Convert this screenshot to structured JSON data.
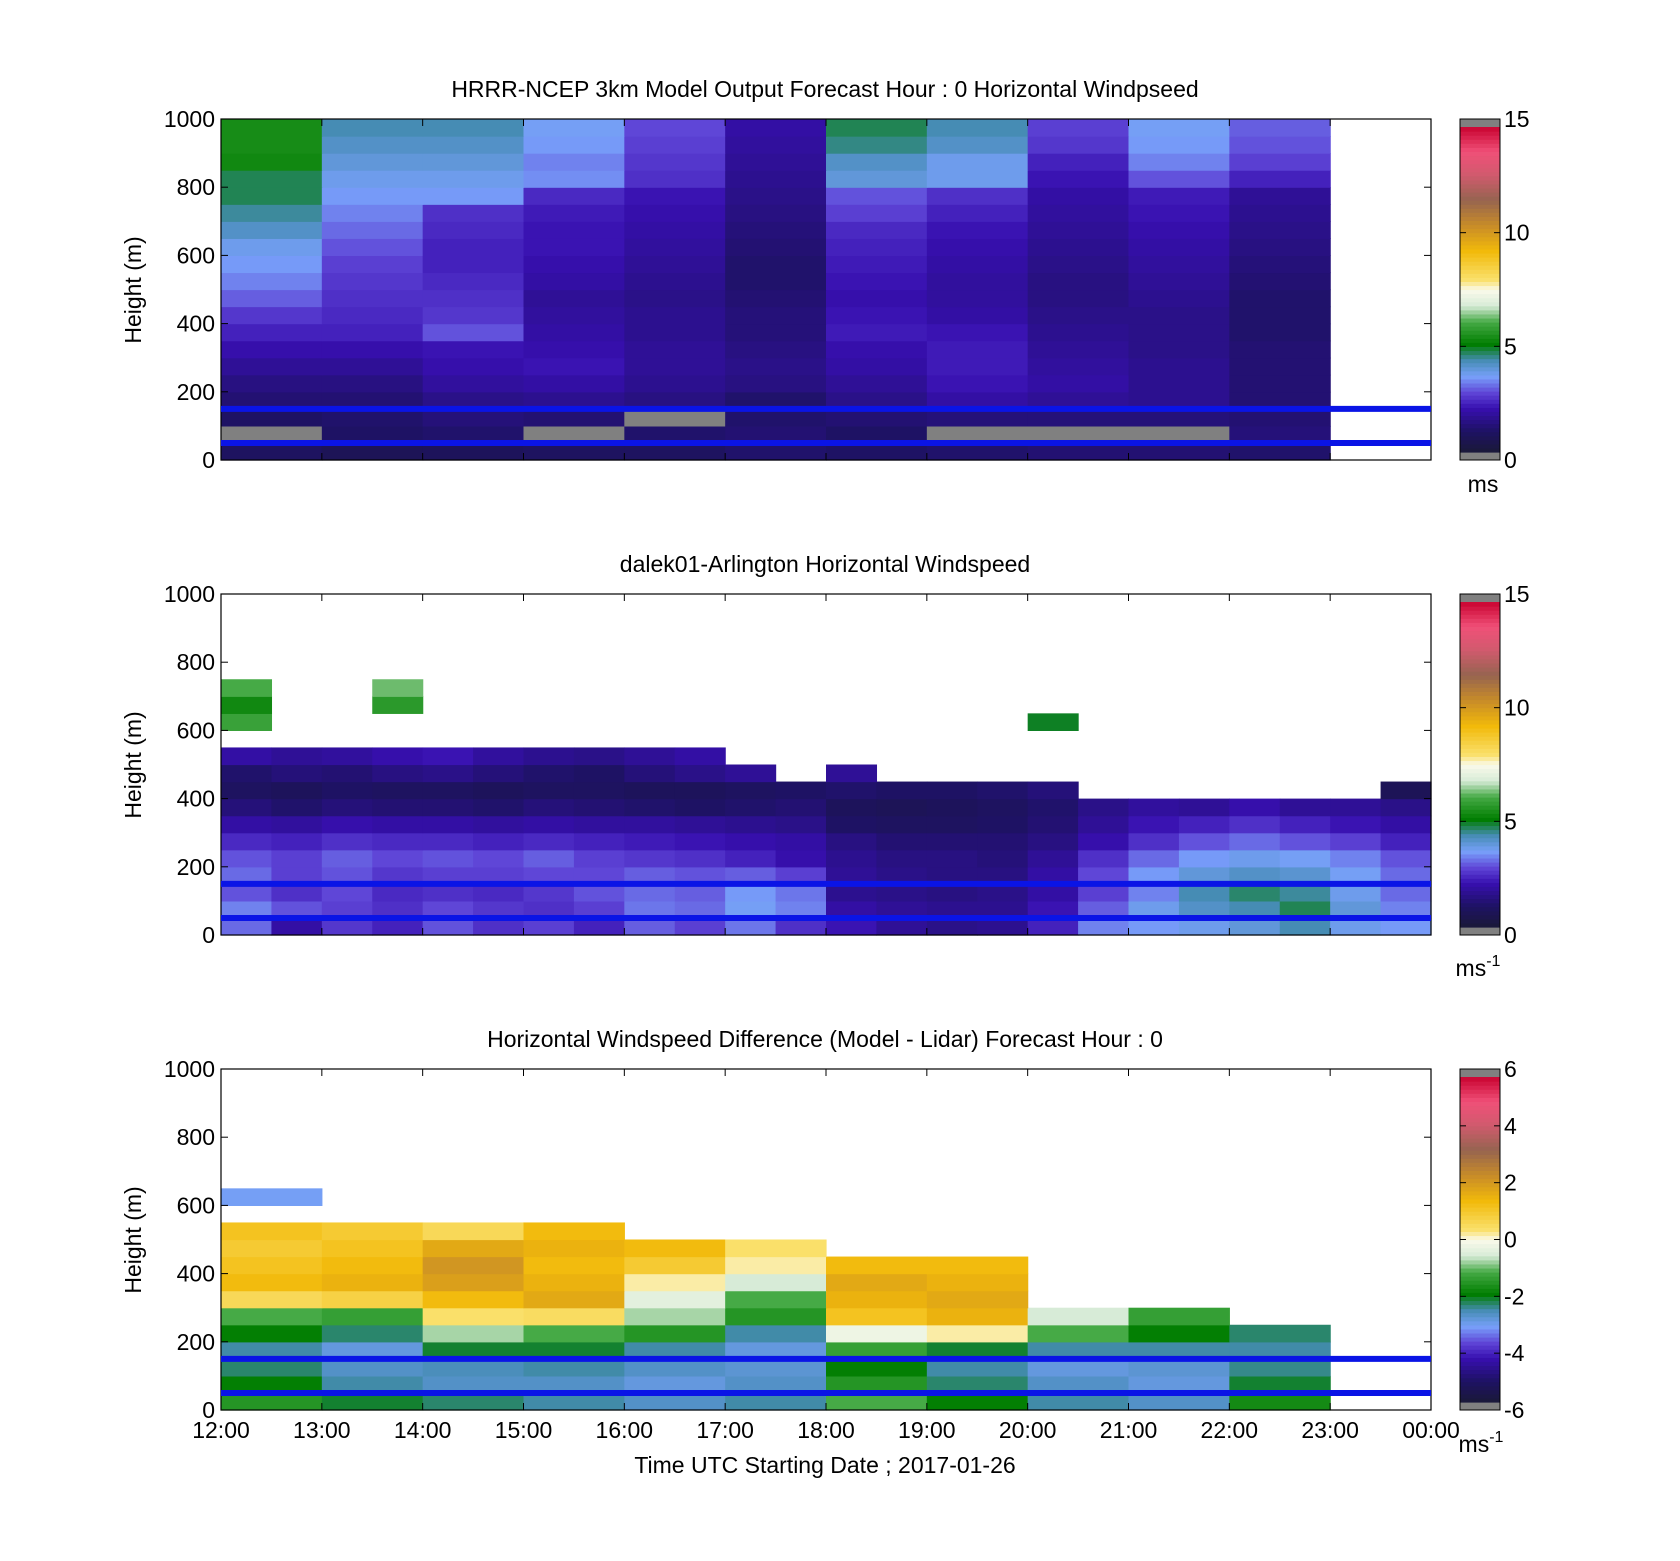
{
  "figure": {
    "xlabel": "Time UTC  Starting Date ; 2017-01-26"
  },
  "chart_data": [
    {
      "type": "heatmap",
      "title": "HRRR-NCEP 3km Model Output   Forecast Hour : 0 Horizontal Windpseed",
      "ylabel": "Height (m)",
      "xlim_hours": [
        12,
        24
      ],
      "ylim": [
        0,
        1000
      ],
      "yticks": [
        "0",
        "200",
        "400",
        "600",
        "800",
        "1000"
      ],
      "colorbar": {
        "min": 0,
        "max": 15,
        "ticks": [
          "0",
          "5",
          "10",
          "15"
        ],
        "unit_base": "ms",
        "unit_sup": ""
      },
      "reference_heights_m": [
        150,
        50
      ],
      "reference_line_color": "#0a14e6",
      "x_hours": [
        12,
        13,
        14,
        15,
        16,
        17,
        18,
        19,
        20,
        21,
        22
      ],
      "column_width_hours": 1,
      "y_heights": [
        0,
        50,
        100,
        150,
        200,
        250,
        300,
        350,
        400,
        450,
        500,
        550,
        600,
        650,
        700,
        750,
        800,
        850,
        900,
        950
      ],
      "row_height_m": 50,
      "missing_value_color": "#808080",
      "z": [
        [
          0.8,
          0.6,
          0.7,
          0.8,
          0.8,
          1.0,
          0.9,
          1.0,
          1.1,
          1.1,
          1.0
        ],
        [
          -1,
          0.9,
          1.0,
          -1,
          1.0,
          1.1,
          0.9,
          -1,
          -1,
          -1,
          1.2
        ],
        [
          0.9,
          1.0,
          1.2,
          1.1,
          -1,
          1.0,
          1.1,
          1.2,
          1.2,
          1.2,
          1.1
        ],
        [
          1.1,
          1.1,
          1.4,
          1.5,
          1.3,
          1.0,
          1.4,
          1.8,
          1.6,
          1.5,
          1.1
        ],
        [
          1.3,
          1.3,
          1.7,
          1.8,
          1.5,
          1.3,
          1.6,
          2.0,
          1.8,
          1.5,
          1.1
        ],
        [
          1.6,
          1.6,
          1.9,
          2.0,
          1.6,
          1.4,
          1.8,
          2.1,
          1.7,
          1.5,
          1.1
        ],
        [
          1.9,
          1.9,
          2.0,
          1.9,
          1.6,
          1.3,
          1.9,
          2.1,
          1.6,
          1.4,
          1.1
        ],
        [
          2.2,
          2.2,
          2.8,
          1.8,
          1.5,
          1.2,
          2.1,
          2.0,
          1.5,
          1.4,
          1.0
        ],
        [
          2.5,
          2.3,
          2.5,
          1.7,
          1.5,
          1.2,
          2.0,
          1.8,
          1.4,
          1.4,
          1.0
        ],
        [
          2.9,
          2.4,
          2.4,
          1.6,
          1.4,
          1.1,
          1.9,
          1.7,
          1.3,
          1.5,
          1.0
        ],
        [
          3.2,
          2.5,
          2.3,
          1.8,
          1.5,
          1.0,
          2.0,
          1.7,
          1.3,
          1.6,
          1.1
        ],
        [
          3.4,
          2.6,
          2.2,
          1.9,
          1.6,
          1.0,
          2.1,
          1.8,
          1.4,
          1.7,
          1.2
        ],
        [
          3.6,
          2.8,
          2.2,
          2.0,
          1.7,
          1.1,
          2.2,
          1.9,
          1.5,
          1.8,
          1.3
        ],
        [
          4.0,
          3.0,
          2.3,
          2.0,
          1.8,
          1.2,
          2.3,
          2.0,
          1.6,
          1.9,
          1.4
        ],
        [
          4.3,
          3.2,
          2.4,
          2.1,
          1.9,
          1.3,
          2.6,
          2.2,
          1.7,
          2.0,
          1.5
        ],
        [
          4.6,
          3.4,
          3.4,
          2.3,
          2.0,
          1.4,
          2.8,
          2.4,
          1.8,
          2.1,
          1.6
        ],
        [
          4.6,
          3.6,
          3.6,
          3.3,
          2.4,
          1.5,
          3.8,
          3.6,
          2.0,
          2.8,
          2.2
        ],
        [
          5.2,
          3.8,
          3.8,
          3.2,
          2.5,
          1.6,
          4.0,
          3.6,
          2.2,
          3.2,
          2.6
        ],
        [
          5.3,
          4.0,
          4.0,
          3.4,
          2.6,
          1.7,
          4.4,
          4.0,
          2.5,
          3.4,
          2.8
        ],
        [
          5.3,
          4.2,
          4.2,
          3.5,
          2.7,
          1.8,
          4.6,
          4.2,
          2.6,
          3.5,
          2.9
        ]
      ]
    },
    {
      "type": "heatmap",
      "title": "dalek01-Arlington  Horizontal Windspeed",
      "ylabel": "Height (m)",
      "xlim_hours": [
        12,
        24
      ],
      "ylim": [
        0,
        1000
      ],
      "yticks": [
        "0",
        "200",
        "400",
        "600",
        "800",
        "1000"
      ],
      "colorbar": {
        "min": 0,
        "max": 15,
        "ticks": [
          "0",
          "5",
          "10",
          "15"
        ],
        "unit_base": "ms",
        "unit_sup": "-1"
      },
      "reference_heights_m": [
        150,
        50
      ],
      "reference_line_color": "#0a14e6",
      "x_hours": [
        12.0,
        12.5,
        13.0,
        13.5,
        14.0,
        14.5,
        15.0,
        15.5,
        16.0,
        16.5,
        17.0,
        17.5,
        18.0,
        18.5,
        19.0,
        19.5,
        20.0,
        20.5,
        21.0,
        21.5,
        22.0,
        22.5,
        23.0,
        23.5
      ],
      "column_width_hours": 0.5,
      "y_heights": [
        0,
        50,
        100,
        150,
        200,
        250,
        300,
        350,
        400,
        450,
        500,
        550,
        600,
        650,
        700,
        750
      ],
      "row_height_m": 50,
      "missing_value_color": "#808080",
      "z": [
        [
          3.0,
          1.8,
          2.5,
          2.2,
          2.8,
          2.4,
          2.6,
          2.2,
          2.9,
          2.6,
          3.1,
          2.4,
          2.0,
          1.6,
          1.4,
          1.5,
          2.2,
          3.2,
          3.4,
          3.6,
          3.8,
          4.2,
          3.6,
          3.4
        ],
        [
          3.2,
          2.8,
          2.6,
          2.4,
          2.7,
          2.5,
          2.4,
          2.6,
          3.1,
          3.0,
          3.5,
          3.2,
          1.8,
          1.6,
          1.5,
          1.5,
          2.0,
          2.9,
          3.6,
          4.0,
          4.2,
          4.6,
          3.8,
          3.2
        ],
        [
          2.8,
          2.4,
          2.7,
          2.3,
          2.4,
          2.3,
          2.5,
          2.8,
          3.0,
          2.9,
          3.4,
          3.1,
          1.5,
          1.4,
          1.3,
          1.4,
          1.8,
          2.6,
          3.2,
          4.2,
          4.5,
          4.3,
          3.6,
          3.0
        ],
        [
          3.0,
          2.6,
          2.8,
          2.5,
          2.6,
          2.6,
          2.7,
          2.7,
          2.9,
          2.8,
          2.9,
          2.6,
          1.6,
          1.4,
          1.3,
          1.3,
          1.8,
          2.7,
          3.4,
          3.8,
          4.0,
          3.9,
          3.5,
          3.0
        ],
        [
          2.8,
          2.6,
          2.9,
          2.7,
          2.8,
          2.7,
          2.9,
          2.6,
          2.5,
          2.4,
          2.2,
          1.9,
          1.5,
          1.3,
          1.3,
          1.2,
          1.6,
          2.4,
          3.0,
          3.4,
          3.6,
          3.5,
          3.2,
          2.8
        ],
        [
          2.3,
          2.2,
          2.4,
          2.3,
          2.3,
          2.2,
          2.3,
          2.2,
          2.1,
          2.0,
          1.9,
          1.8,
          1.3,
          1.1,
          1.1,
          1.1,
          1.3,
          1.9,
          2.4,
          2.8,
          3.0,
          2.8,
          2.6,
          2.2
        ],
        [
          1.8,
          1.7,
          1.9,
          1.8,
          1.8,
          1.7,
          1.8,
          1.7,
          1.7,
          1.6,
          1.5,
          1.4,
          0.9,
          0.8,
          0.8,
          0.9,
          1.1,
          1.6,
          2.0,
          2.2,
          2.4,
          2.2,
          2.0,
          1.8
        ],
        [
          1.2,
          1.0,
          1.2,
          1.1,
          1.1,
          1.0,
          1.2,
          1.1,
          1.0,
          0.9,
          1.0,
          1.1,
          0.7,
          0.6,
          0.7,
          0.8,
          1.0,
          1.4,
          1.7,
          1.6,
          1.9,
          1.6,
          1.6,
          1.4
        ],
        [
          0.8,
          0.7,
          0.9,
          0.8,
          0.8,
          0.7,
          0.8,
          0.8,
          0.7,
          0.7,
          0.8,
          0.9,
          1.0,
          0.9,
          0.9,
          1.0,
          1.2,
          null,
          null,
          null,
          null,
          null,
          null,
          0.6
        ],
        [
          1.0,
          1.2,
          1.1,
          1.3,
          1.4,
          1.2,
          1.0,
          0.9,
          1.2,
          1.4,
          1.6,
          null,
          1.6,
          null,
          null,
          null,
          null,
          null,
          null,
          null,
          null,
          null,
          null,
          null
        ],
        [
          1.8,
          1.6,
          1.7,
          1.9,
          2.0,
          1.7,
          1.5,
          1.4,
          1.6,
          1.8,
          null,
          null,
          null,
          null,
          null,
          null,
          null,
          null,
          null,
          null,
          null,
          null,
          null,
          null
        ],
        [
          null,
          null,
          null,
          null,
          null,
          null,
          null,
          null,
          null,
          null,
          null,
          null,
          null,
          null,
          null,
          null,
          null,
          null,
          null,
          null,
          null,
          null,
          null,
          null
        ],
        [
          5.8,
          null,
          null,
          null,
          null,
          null,
          null,
          null,
          null,
          null,
          null,
          null,
          null,
          null,
          null,
          null,
          4.8,
          null,
          null,
          null,
          null,
          null,
          null,
          null
        ],
        [
          5.2,
          null,
          null,
          5.6,
          null,
          null,
          null,
          null,
          null,
          null,
          null,
          null,
          null,
          null,
          null,
          null,
          null,
          null,
          null,
          null,
          null,
          null,
          null,
          null
        ],
        [
          6.0,
          null,
          null,
          6.2,
          null,
          null,
          null,
          null,
          null,
          null,
          null,
          null,
          null,
          null,
          null,
          null,
          null,
          null,
          null,
          null,
          null,
          null,
          null,
          null
        ],
        [
          null,
          null,
          null,
          null,
          null,
          null,
          null,
          null,
          null,
          null,
          null,
          null,
          null,
          null,
          null,
          null,
          null,
          null,
          null,
          null,
          null,
          null,
          null,
          null
        ]
      ]
    },
    {
      "type": "heatmap",
      "title": "Horizontal Windspeed Difference (Model - Lidar) Forecast Hour : 0",
      "ylabel": "Height (m)",
      "xlim_hours": [
        12,
        24
      ],
      "ylim": [
        0,
        1000
      ],
      "yticks": [
        "0",
        "200",
        "400",
        "600",
        "800",
        "1000"
      ],
      "xticks": [
        "12:00",
        "13:00",
        "14:00",
        "15:00",
        "16:00",
        "17:00",
        "18:00",
        "19:00",
        "20:00",
        "21:00",
        "22:00",
        "23:00",
        "00:00"
      ],
      "colorbar": {
        "min": -6,
        "max": 6,
        "ticks": [
          "-6",
          "-4",
          "-2",
          "0",
          "2",
          "4",
          "6"
        ],
        "unit_base": "ms",
        "unit_sup": "-1"
      },
      "reference_heights_m": [
        150,
        50
      ],
      "reference_line_color": "#0a14e6",
      "x_hours": [
        12,
        13,
        14,
        15,
        16,
        17,
        18,
        19,
        20,
        21,
        22
      ],
      "column_width_hours": 1,
      "y_heights": [
        0,
        50,
        100,
        150,
        200,
        250,
        300,
        350,
        400,
        450,
        500,
        550,
        600,
        650
      ],
      "row_height_m": 50,
      "missing_value_color": "#808080",
      "z": [
        [
          -1.6,
          -2.2,
          -2.4,
          -2.6,
          -2.8,
          -2.6,
          -1.2,
          -2.0,
          -2.6,
          -2.8,
          -1.8
        ],
        [
          -2.0,
          -2.6,
          -2.8,
          -2.8,
          -3.0,
          -2.8,
          -1.6,
          -2.4,
          -2.8,
          -3.0,
          -2.2
        ],
        [
          -2.4,
          -2.8,
          -2.7,
          -2.6,
          -2.8,
          -2.9,
          -2.0,
          -2.6,
          -3.0,
          -2.9,
          -2.5
        ],
        [
          -2.6,
          -3.0,
          -2.2,
          -2.2,
          -2.6,
          -3.0,
          -1.4,
          -2.2,
          -2.6,
          -2.6,
          -2.6
        ],
        [
          -2.0,
          -2.4,
          -0.8,
          -1.2,
          -1.6,
          -2.6,
          -0.2,
          0.2,
          -1.2,
          -2.0,
          -2.4
        ],
        [
          -1.2,
          -1.4,
          0.4,
          0.5,
          -0.8,
          -1.6,
          1.2,
          1.6,
          -0.6,
          -1.4,
          null
        ],
        [
          0.6,
          0.8,
          1.4,
          1.8,
          -0.4,
          -1.2,
          1.6,
          1.8,
          null,
          null,
          null
        ],
        [
          1.4,
          1.6,
          2.0,
          1.6,
          0.2,
          -0.6,
          1.8,
          1.6,
          null,
          null,
          null
        ],
        [
          1.2,
          1.4,
          2.2,
          1.4,
          1.0,
          0.2,
          1.4,
          1.4,
          null,
          null,
          null
        ],
        [
          1.0,
          1.2,
          1.8,
          1.6,
          1.4,
          0.4,
          null,
          null,
          null,
          null,
          null
        ],
        [
          1.2,
          1.0,
          0.6,
          1.4,
          null,
          null,
          null,
          null,
          null,
          null,
          null
        ],
        [
          null,
          null,
          null,
          null,
          null,
          null,
          null,
          null,
          null,
          null,
          null
        ],
        [
          -3.2,
          null,
          null,
          null,
          null,
          null,
          null,
          null,
          null,
          null,
          null
        ],
        [
          null,
          null,
          null,
          null,
          null,
          null,
          null,
          null,
          null,
          null,
          null
        ]
      ]
    }
  ]
}
